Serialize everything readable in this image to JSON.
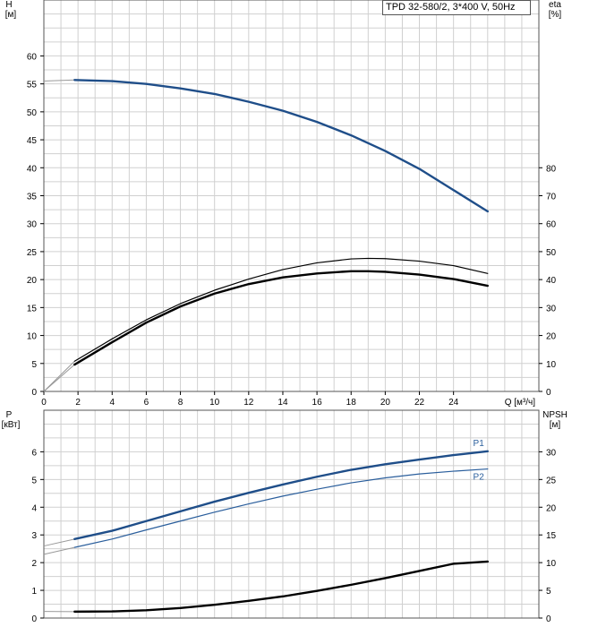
{
  "title": "TPD 32-580/2, 3*400 V, 50Hz",
  "colors": {
    "pump_curve": "#1f4e89",
    "power_line": "#2a5e9c",
    "black": "#000000",
    "grid": "#d0d0d0"
  },
  "chart_data": [
    {
      "type": "line",
      "name": "head-efficiency",
      "x_label": "Q [м³/ч]",
      "xlim": [
        0,
        29
      ],
      "x_ticks": [
        0,
        2,
        4,
        6,
        8,
        10,
        12,
        14,
        16,
        18,
        20,
        22,
        24
      ],
      "y_left": {
        "label_top": "H",
        "label_unit": "[м]",
        "lim": [
          0,
          70
        ],
        "ticks": [
          0,
          5,
          10,
          15,
          20,
          25,
          30,
          35,
          40,
          45,
          50,
          55,
          60
        ]
      },
      "y_right": {
        "label_top": "eta",
        "label_unit": "[%]",
        "lim": [
          0,
          140
        ],
        "ticks": [
          0,
          10,
          20,
          30,
          40,
          50,
          60,
          70,
          80
        ]
      },
      "grid": true,
      "series": [
        {
          "axis": "left",
          "style": "blue-thick",
          "points": [
            [
              0,
              55.5
            ],
            [
              1.8,
              55.7
            ],
            [
              4,
              55.5
            ],
            [
              6,
              55
            ],
            [
              8,
              54.2
            ],
            [
              10,
              53.2
            ],
            [
              12,
              51.8
            ],
            [
              14,
              50.2
            ],
            [
              16,
              48.2
            ],
            [
              18,
              45.8
            ],
            [
              20,
              43
            ],
            [
              22,
              39.8
            ],
            [
              24,
              36
            ],
            [
              26,
              32.2
            ]
          ]
        },
        {
          "axis": "right",
          "style": "black-thin",
          "points": [
            [
              0,
              0
            ],
            [
              1.8,
              10.8
            ],
            [
              4,
              18.8
            ],
            [
              6,
              25.6
            ],
            [
              8,
              31.4
            ],
            [
              10,
              36.2
            ],
            [
              12,
              40.2
            ],
            [
              14,
              43.6
            ],
            [
              16,
              46
            ],
            [
              18,
              47.4
            ],
            [
              19,
              47.6
            ],
            [
              20,
              47.5
            ],
            [
              22,
              46.6
            ],
            [
              24,
              45
            ],
            [
              26,
              42.2
            ]
          ]
        },
        {
          "axis": "right",
          "style": "black-thick",
          "points": [
            [
              0,
              0
            ],
            [
              1.8,
              9.6
            ],
            [
              4,
              17.6
            ],
            [
              6,
              24.6
            ],
            [
              8,
              30.4
            ],
            [
              10,
              35
            ],
            [
              12,
              38.4
            ],
            [
              14,
              40.8
            ],
            [
              16,
              42.2
            ],
            [
              18,
              43
            ],
            [
              19,
              43
            ],
            [
              20,
              42.8
            ],
            [
              22,
              41.8
            ],
            [
              24,
              40.2
            ],
            [
              26,
              37.8
            ]
          ]
        }
      ]
    },
    {
      "type": "line",
      "name": "power-npsh",
      "x_label": "",
      "xlim": [
        0,
        29
      ],
      "x_ticks": [],
      "y_left": {
        "label_top": "P",
        "label_unit": "[кВт]",
        "lim": [
          0,
          7.5
        ],
        "ticks": [
          0,
          1,
          2,
          3,
          4,
          5,
          6
        ]
      },
      "y_right": {
        "label_top": "NPSH",
        "label_unit": "[м]",
        "lim": [
          0,
          37.5
        ],
        "ticks": [
          0,
          5,
          10,
          15,
          20,
          25,
          30
        ]
      },
      "grid": true,
      "series": [
        {
          "name": "P1",
          "axis": "left",
          "style": "blue-thick",
          "points": [
            [
              0,
              2.6
            ],
            [
              1.8,
              2.85
            ],
            [
              4,
              3.15
            ],
            [
              6,
              3.5
            ],
            [
              8,
              3.85
            ],
            [
              10,
              4.2
            ],
            [
              12,
              4.52
            ],
            [
              14,
              4.82
            ],
            [
              16,
              5.1
            ],
            [
              18,
              5.35
            ],
            [
              20,
              5.55
            ],
            [
              22,
              5.72
            ],
            [
              24,
              5.88
            ],
            [
              26,
              6.02
            ]
          ]
        },
        {
          "name": "P2",
          "axis": "left",
          "style": "blue-thin",
          "points": [
            [
              0,
              2.3
            ],
            [
              1.8,
              2.55
            ],
            [
              4,
              2.85
            ],
            [
              6,
              3.18
            ],
            [
              8,
              3.5
            ],
            [
              10,
              3.82
            ],
            [
              12,
              4.12
            ],
            [
              14,
              4.4
            ],
            [
              16,
              4.65
            ],
            [
              18,
              4.88
            ],
            [
              20,
              5.06
            ],
            [
              22,
              5.2
            ],
            [
              24,
              5.3
            ],
            [
              26,
              5.38
            ]
          ]
        },
        {
          "axis": "right",
          "style": "black-thick",
          "points": [
            [
              0,
              1.2
            ],
            [
              1.8,
              1.15
            ],
            [
              4,
              1.2
            ],
            [
              6,
              1.4
            ],
            [
              8,
              1.8
            ],
            [
              10,
              2.4
            ],
            [
              12,
              3.1
            ],
            [
              14,
              3.9
            ],
            [
              16,
              4.9
            ],
            [
              18,
              6
            ],
            [
              20,
              7.2
            ],
            [
              22,
              8.5
            ],
            [
              24,
              9.8
            ],
            [
              26,
              10.2
            ]
          ]
        }
      ]
    }
  ]
}
